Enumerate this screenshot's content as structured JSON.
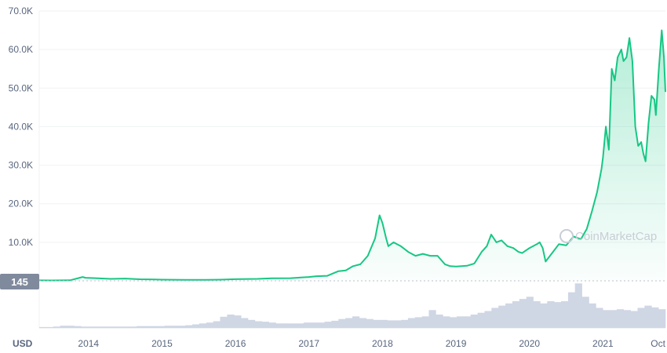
{
  "chart_data": {
    "type": "area",
    "currency_label": "USD",
    "current_value_label": "145",
    "watermark": "CoinMarketCap",
    "colors": {
      "line": "#16c784",
      "fill_top": "#16c784",
      "volume": "#cfd6e4",
      "grid": "#eff2f5",
      "text": "#58667e",
      "badge": "#808a9d"
    },
    "ylim": [
      0,
      70000
    ],
    "y_ticks": [
      {
        "value": 10000,
        "label": "10.0K"
      },
      {
        "value": 20000,
        "label": "20.0K"
      },
      {
        "value": 30000,
        "label": "30.0K"
      },
      {
        "value": 40000,
        "label": "40.0K"
      },
      {
        "value": 50000,
        "label": "50.0K"
      },
      {
        "value": 60000,
        "label": "60.0K"
      },
      {
        "value": 70000,
        "label": "70.0K"
      }
    ],
    "xlim": [
      2013.33,
      2021.85
    ],
    "x_ticks": [
      {
        "value": 2014.0,
        "label": "2014"
      },
      {
        "value": 2015.0,
        "label": "2015"
      },
      {
        "value": 2016.0,
        "label": "2016"
      },
      {
        "value": 2017.0,
        "label": "2017"
      },
      {
        "value": 2018.0,
        "label": "2018"
      },
      {
        "value": 2019.0,
        "label": "2019"
      },
      {
        "value": 2020.0,
        "label": "2020"
      },
      {
        "value": 2021.0,
        "label": "2021"
      },
      {
        "value": 2021.75,
        "label": "Oct"
      }
    ],
    "series": [
      {
        "x": [
          2013.33,
          2013.5,
          2013.75,
          2013.92,
          2013.96,
          2014.1,
          2014.3,
          2014.5,
          2014.7,
          2014.9,
          2015.0,
          2015.3,
          2015.6,
          2015.8,
          2016.0,
          2016.3,
          2016.5,
          2016.75,
          2017.0,
          2017.1,
          2017.25,
          2017.4,
          2017.5,
          2017.6,
          2017.7,
          2017.8,
          2017.9,
          2017.96,
          2018.0,
          2018.05,
          2018.08,
          2018.15,
          2018.25,
          2018.35,
          2018.45,
          2018.55,
          2018.65,
          2018.75,
          2018.85,
          2018.92,
          2019.0,
          2019.15,
          2019.25,
          2019.35,
          2019.42,
          2019.48,
          2019.55,
          2019.62,
          2019.7,
          2019.78,
          2019.85,
          2019.9,
          2020.0,
          2020.1,
          2020.14,
          2020.18,
          2020.22,
          2020.3,
          2020.4,
          2020.5,
          2020.6,
          2020.7,
          2020.78,
          2020.85,
          2020.92,
          2020.98,
          2021.0,
          2021.04,
          2021.08,
          2021.12,
          2021.16,
          2021.2,
          2021.25,
          2021.28,
          2021.32,
          2021.36,
          2021.4,
          2021.44,
          2021.48,
          2021.52,
          2021.55,
          2021.58,
          2021.62,
          2021.66,
          2021.7,
          2021.72,
          2021.76,
          2021.8,
          2021.83,
          2021.85
        ],
        "y": [
          120,
          100,
          150,
          1000,
          800,
          700,
          500,
          600,
          400,
          350,
          300,
          260,
          240,
          300,
          430,
          500,
          650,
          700,
          1000,
          1200,
          1300,
          2500,
          2700,
          3800,
          4300,
          6500,
          11000,
          17000,
          15000,
          11000,
          9000,
          10000,
          9000,
          7500,
          6500,
          7000,
          6500,
          6500,
          4300,
          3800,
          3700,
          3900,
          4500,
          7500,
          9000,
          12000,
          10000,
          10500,
          9000,
          8500,
          7500,
          7200,
          8500,
          9500,
          10000,
          8500,
          5000,
          7000,
          9500,
          9200,
          11500,
          10800,
          13500,
          18000,
          23000,
          29000,
          32000,
          40000,
          34000,
          55000,
          52000,
          58000,
          60000,
          57000,
          58000,
          63000,
          57000,
          40000,
          35000,
          36000,
          33000,
          31000,
          41000,
          48000,
          47000,
          43000,
          55000,
          65000,
          58000,
          49000
        ]
      }
    ],
    "volume_relative": [
      0.02,
      0.02,
      0.03,
      0.05,
      0.05,
      0.04,
      0.03,
      0.03,
      0.03,
      0.03,
      0.03,
      0.03,
      0.03,
      0.03,
      0.04,
      0.04,
      0.04,
      0.04,
      0.05,
      0.05,
      0.05,
      0.06,
      0.08,
      0.1,
      0.12,
      0.15,
      0.25,
      0.3,
      0.28,
      0.22,
      0.18,
      0.15,
      0.14,
      0.12,
      0.1,
      0.1,
      0.1,
      0.1,
      0.12,
      0.12,
      0.12,
      0.14,
      0.16,
      0.2,
      0.22,
      0.26,
      0.22,
      0.2,
      0.18,
      0.18,
      0.17,
      0.17,
      0.18,
      0.22,
      0.24,
      0.26,
      0.4,
      0.3,
      0.26,
      0.24,
      0.26,
      0.26,
      0.3,
      0.34,
      0.38,
      0.45,
      0.5,
      0.55,
      0.6,
      0.65,
      0.7,
      0.6,
      0.55,
      0.6,
      0.58,
      0.6,
      0.8,
      1.0,
      0.7,
      0.55,
      0.45,
      0.4,
      0.4,
      0.42,
      0.4,
      0.38,
      0.45,
      0.5,
      0.46,
      0.42
    ]
  }
}
